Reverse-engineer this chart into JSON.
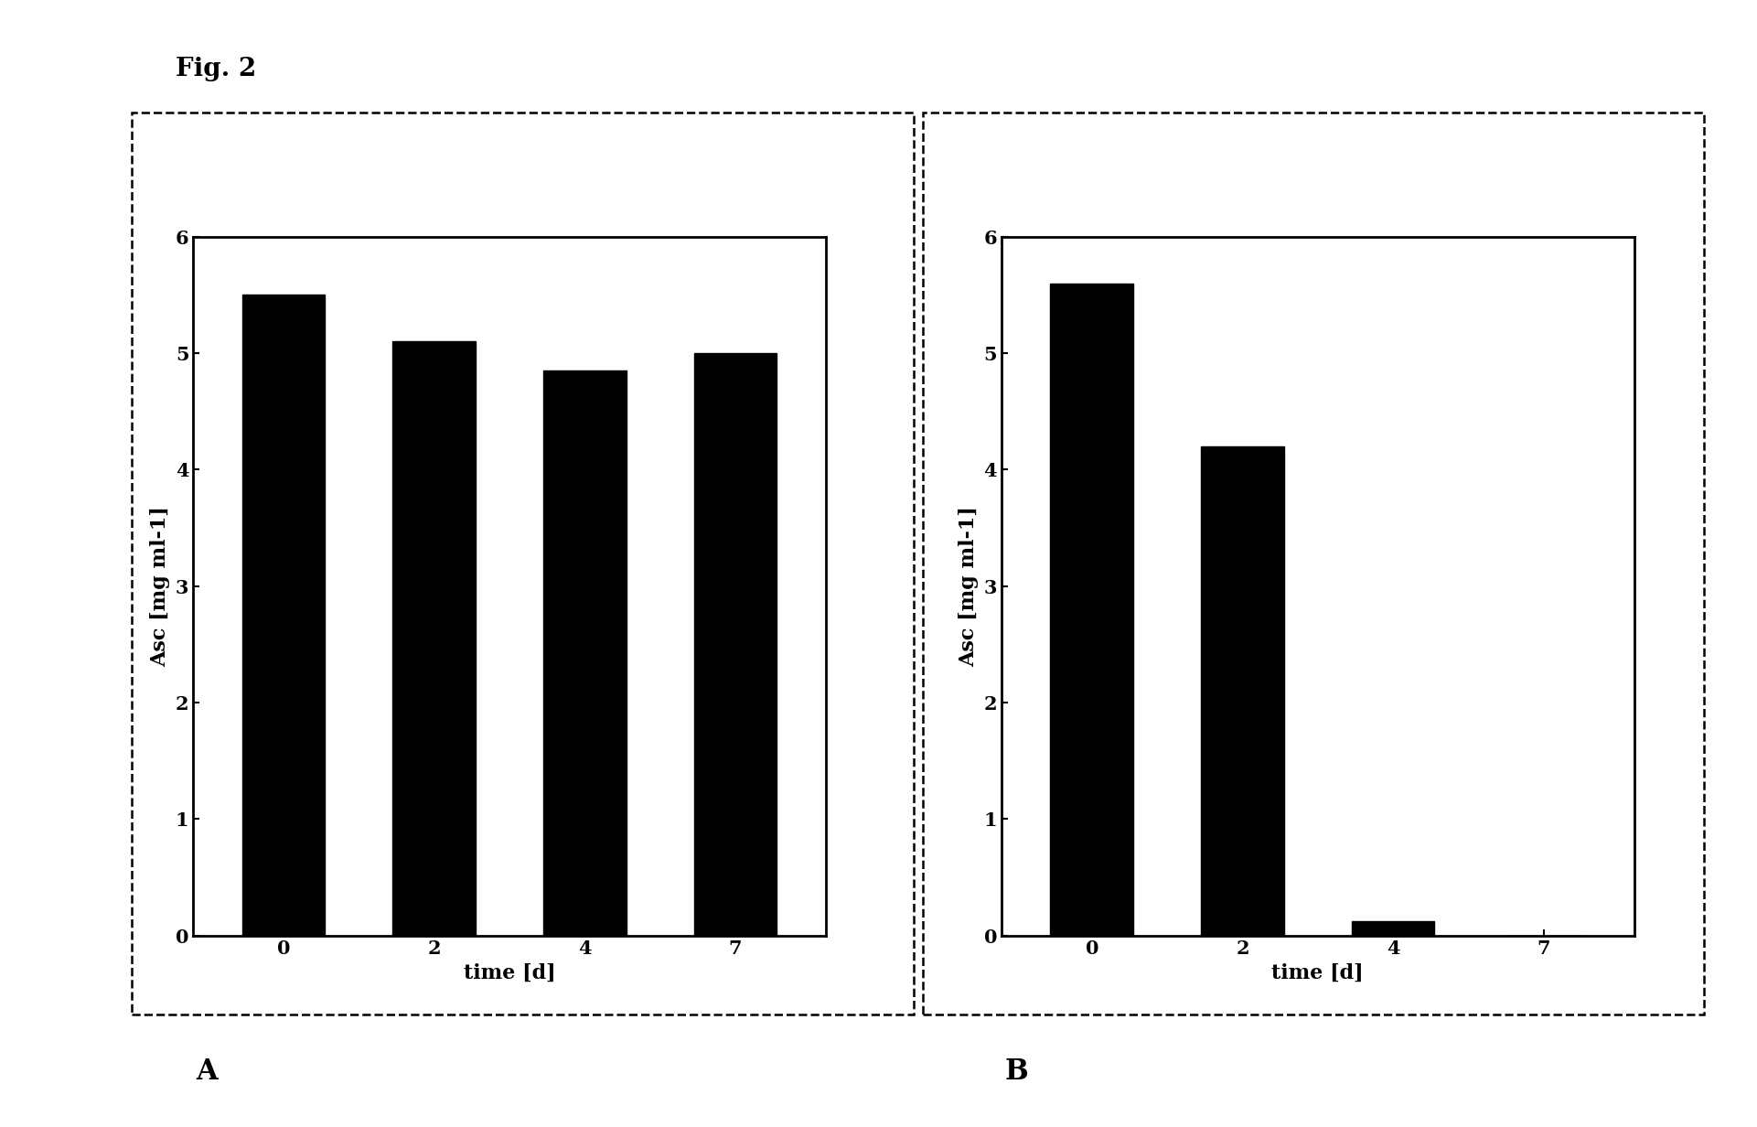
{
  "fig_title": "Fig. 2",
  "bar_color": "#000000",
  "panel_A": {
    "label": "A",
    "categories": [
      0,
      2,
      4,
      7
    ],
    "values": [
      5.5,
      5.1,
      4.85,
      5.0
    ],
    "ylabel": "Asc [mg ml-1]",
    "xlabel": "time [d]",
    "ylim": [
      0,
      6
    ],
    "yticks": [
      0,
      1,
      2,
      3,
      4,
      5,
      6
    ],
    "xtick_labels": [
      "0",
      "2",
      "4",
      "7"
    ]
  },
  "panel_B": {
    "label": "B",
    "categories": [
      0,
      2,
      4,
      7
    ],
    "values": [
      5.6,
      4.2,
      0.12,
      0.0
    ],
    "ylabel": "Asc [mg ml-1]",
    "xlabel": "time [d]",
    "ylim": [
      0,
      6
    ],
    "yticks": [
      0,
      1,
      2,
      3,
      4,
      5,
      6
    ],
    "xtick_labels": [
      "0",
      "2",
      "4",
      "7"
    ]
  },
  "background_color": "#ffffff",
  "bar_width": 0.55,
  "title_fontsize": 20,
  "label_fontsize": 16,
  "tick_fontsize": 15,
  "panel_label_fontsize": 22
}
